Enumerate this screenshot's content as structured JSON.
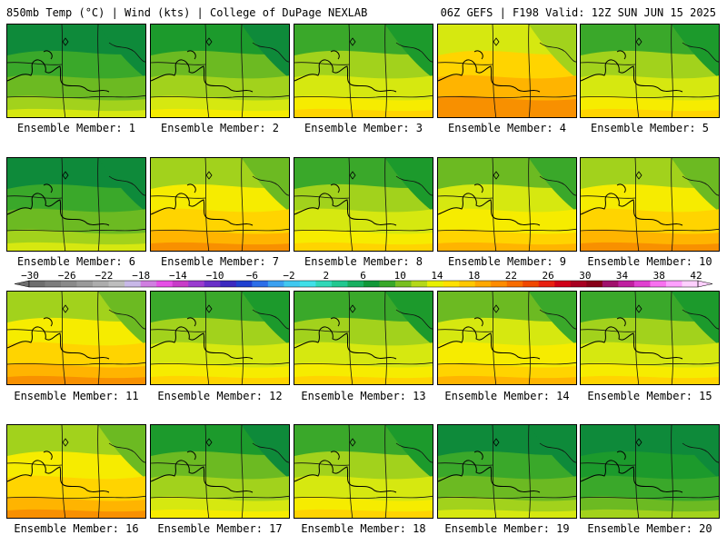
{
  "header": {
    "left": "850mb Temp (°C) | Wind (kts) | College of DuPage NEXLAB",
    "right": "06Z GEFS | F198 Valid: 12Z SUN JUN 15 2025"
  },
  "panels": [
    {
      "label": "Ensemble Member: 1",
      "warmth": 0.25
    },
    {
      "label": "Ensemble Member: 2",
      "warmth": 0.4
    },
    {
      "label": "Ensemble Member: 3",
      "warmth": 0.55
    },
    {
      "label": "Ensemble Member: 4",
      "warmth": 0.85
    },
    {
      "label": "Ensemble Member: 5",
      "warmth": 0.45
    },
    {
      "label": "Ensemble Member: 6",
      "warmth": 0.2
    },
    {
      "label": "Ensemble Member: 7",
      "warmth": 0.75
    },
    {
      "label": "Ensemble Member: 8",
      "warmth": 0.55
    },
    {
      "label": "Ensemble Member: 9",
      "warmth": 0.6
    },
    {
      "label": "Ensemble Member: 10",
      "warmth": 0.7
    },
    {
      "label": "Ensemble Member: 11",
      "warmth": 0.7
    },
    {
      "label": "Ensemble Member: 12",
      "warmth": 0.55
    },
    {
      "label": "Ensemble Member: 13",
      "warmth": 0.55
    },
    {
      "label": "Ensemble Member: 14",
      "warmth": 0.65
    },
    {
      "label": "Ensemble Member: 15",
      "warmth": 0.45
    },
    {
      "label": "Ensemble Member: 16",
      "warmth": 0.8
    },
    {
      "label": "Ensemble Member: 17",
      "warmth": 0.35
    },
    {
      "label": "Ensemble Member: 18",
      "warmth": 0.5
    },
    {
      "label": "Ensemble Member: 19",
      "warmth": 0.3
    },
    {
      "label": "Ensemble Member: 20",
      "warmth": 0.15
    }
  ],
  "colorbar": {
    "ticks": [
      "−30",
      "−26",
      "−22",
      "−18",
      "−14",
      "−10",
      "−6",
      "−2",
      "2",
      "6",
      "10",
      "14",
      "18",
      "22",
      "26",
      "30",
      "34",
      "38",
      "42"
    ],
    "colors": [
      "#6e6e6e",
      "#7d7d7d",
      "#8a8a8a",
      "#9a9a9a",
      "#acacac",
      "#bdbdbd",
      "#c8b8e8",
      "#d07ee0",
      "#e64fe6",
      "#c83cc8",
      "#9a3ccf",
      "#6a30c8",
      "#3c28c0",
      "#2040d0",
      "#2c6ee8",
      "#3aa0f0",
      "#40c8f0",
      "#40e0e8",
      "#30d8b8",
      "#20c890",
      "#18b060",
      "#109838",
      "#38a828",
      "#78c020",
      "#b4d818",
      "#e8f000",
      "#ffe000",
      "#ffc800",
      "#ffa800",
      "#ff8c00",
      "#f86c00",
      "#f04800",
      "#e82010",
      "#d00018",
      "#a80020",
      "#880018",
      "#a0106c",
      "#c020a0",
      "#e040d0",
      "#f870f0",
      "#ffa0ff",
      "#ffd0ff"
    ]
  }
}
